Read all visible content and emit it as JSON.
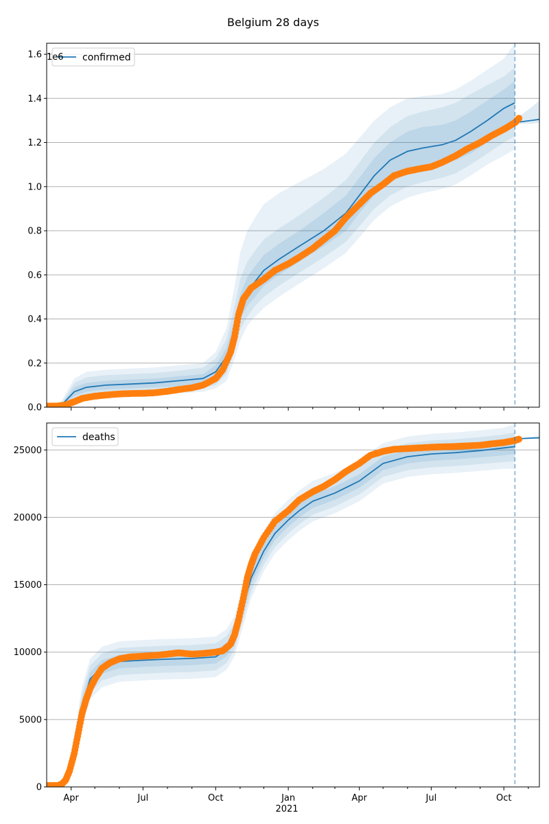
{
  "title": "Belgium 28 days",
  "x_year_label": "2021",
  "colors": {
    "model": "#1f77b4",
    "observed": "#ff7f0e",
    "band": "#1f77b4",
    "grid": "#b0b0b0"
  },
  "chart_data": [
    {
      "type": "line",
      "legend": "confirmed",
      "legend_placement": "upper-left",
      "y_offset_text": "1e6",
      "grid": "y",
      "xlim": [
        "2020-03-01",
        "2021-11-15"
      ],
      "ylim": [
        0,
        1.65
      ],
      "yticks": [
        0,
        0.2,
        0.4,
        0.6,
        0.8,
        1.0,
        1.2,
        1.4,
        1.6
      ],
      "ytick_labels": [
        "0.0",
        "0.2",
        "0.4",
        "0.6",
        "0.8",
        "1.0",
        "1.2",
        "1.4",
        "1.6"
      ],
      "forecast_start": "2021-10-15",
      "model": {
        "x": [
          "2020-03-01",
          "2020-03-20",
          "2020-04-05",
          "2020-04-20",
          "2020-05-15",
          "2020-06-15",
          "2020-07-15",
          "2020-08-15",
          "2020-09-15",
          "2020-10-01",
          "2020-10-15",
          "2020-10-25",
          "2020-11-01",
          "2020-11-10",
          "2020-11-20",
          "2020-12-01",
          "2020-12-20",
          "2021-01-15",
          "2021-02-15",
          "2021-03-15",
          "2021-04-01",
          "2021-04-20",
          "2021-05-10",
          "2021-06-01",
          "2021-06-20",
          "2021-07-15",
          "2021-08-01",
          "2021-08-20",
          "2021-09-10",
          "2021-10-01",
          "2021-10-15"
        ],
        "y": [
          0,
          0.01,
          0.07,
          0.09,
          0.1,
          0.105,
          0.11,
          0.12,
          0.13,
          0.16,
          0.23,
          0.35,
          0.45,
          0.52,
          0.57,
          0.62,
          0.67,
          0.73,
          0.8,
          0.88,
          0.96,
          1.05,
          1.12,
          1.16,
          1.175,
          1.19,
          1.21,
          1.25,
          1.3,
          1.355,
          1.38
        ],
        "lo50": [
          0,
          0.005,
          0.05,
          0.07,
          0.08,
          0.085,
          0.09,
          0.095,
          0.105,
          0.13,
          0.18,
          0.3,
          0.4,
          0.46,
          0.5,
          0.55,
          0.6,
          0.66,
          0.73,
          0.8,
          0.88,
          0.96,
          1.02,
          1.06,
          1.08,
          1.1,
          1.12,
          1.15,
          1.2,
          1.25,
          1.28
        ],
        "hi50": [
          0,
          0.015,
          0.09,
          0.11,
          0.12,
          0.125,
          0.13,
          0.14,
          0.15,
          0.19,
          0.27,
          0.4,
          0.51,
          0.59,
          0.64,
          0.69,
          0.74,
          0.8,
          0.88,
          0.96,
          1.04,
          1.13,
          1.2,
          1.25,
          1.27,
          1.28,
          1.3,
          1.34,
          1.39,
          1.44,
          1.48
        ],
        "lo80": [
          0,
          0.0,
          0.035,
          0.055,
          0.065,
          0.07,
          0.073,
          0.078,
          0.088,
          0.1,
          0.15,
          0.26,
          0.35,
          0.41,
          0.46,
          0.5,
          0.55,
          0.61,
          0.68,
          0.75,
          0.82,
          0.9,
          0.96,
          1.0,
          1.02,
          1.04,
          1.06,
          1.1,
          1.15,
          1.2,
          1.23
        ],
        "hi80": [
          0,
          0.02,
          0.11,
          0.135,
          0.145,
          0.15,
          0.155,
          0.165,
          0.18,
          0.22,
          0.31,
          0.46,
          0.58,
          0.66,
          0.71,
          0.76,
          0.81,
          0.87,
          0.95,
          1.03,
          1.11,
          1.2,
          1.27,
          1.32,
          1.34,
          1.36,
          1.38,
          1.42,
          1.46,
          1.5,
          1.54
        ],
        "lo95": [
          0,
          0.0,
          0.02,
          0.04,
          0.05,
          0.055,
          0.058,
          0.062,
          0.07,
          0.085,
          0.12,
          0.22,
          0.3,
          0.37,
          0.41,
          0.45,
          0.5,
          0.56,
          0.63,
          0.7,
          0.77,
          0.85,
          0.91,
          0.95,
          0.97,
          0.99,
          1.01,
          1.05,
          1.1,
          1.14,
          1.17
        ],
        "hi95": [
          0,
          0.03,
          0.13,
          0.16,
          0.17,
          0.175,
          0.18,
          0.19,
          0.2,
          0.25,
          0.36,
          0.55,
          0.7,
          0.8,
          0.86,
          0.92,
          0.97,
          1.02,
          1.08,
          1.15,
          1.22,
          1.3,
          1.36,
          1.4,
          1.41,
          1.42,
          1.44,
          1.48,
          1.53,
          1.58,
          1.65
        ]
      },
      "tail": {
        "x": [
          "2021-10-15",
          "2021-10-25",
          "2021-11-05",
          "2021-11-15"
        ],
        "y": [
          1.29,
          1.295,
          1.3,
          1.305
        ],
        "lo": [
          1.28,
          1.285,
          1.285,
          1.29
        ],
        "hi": [
          1.31,
          1.33,
          1.36,
          1.39
        ]
      },
      "observed": {
        "x": [
          "2020-03-01",
          "2020-03-15",
          "2020-03-25",
          "2020-04-05",
          "2020-04-15",
          "2020-05-01",
          "2020-05-15",
          "2020-06-01",
          "2020-06-15",
          "2020-07-01",
          "2020-07-15",
          "2020-08-01",
          "2020-08-15",
          "2020-09-01",
          "2020-09-15",
          "2020-10-01",
          "2020-10-10",
          "2020-10-20",
          "2020-10-25",
          "2020-10-30",
          "2020-11-05",
          "2020-11-15",
          "2020-12-01",
          "2020-12-15",
          "2021-01-01",
          "2021-01-15",
          "2021-02-01",
          "2021-02-15",
          "2021-03-01",
          "2021-03-15",
          "2021-04-01",
          "2021-04-15",
          "2021-05-01",
          "2021-05-15",
          "2021-06-01",
          "2021-06-15",
          "2021-07-01",
          "2021-07-15",
          "2021-08-01",
          "2021-08-15",
          "2021-09-01",
          "2021-09-15",
          "2021-10-01",
          "2021-10-15",
          "2021-10-20"
        ],
        "y": [
          0.005,
          0.005,
          0.01,
          0.025,
          0.04,
          0.05,
          0.055,
          0.06,
          0.062,
          0.063,
          0.065,
          0.072,
          0.08,
          0.088,
          0.1,
          0.13,
          0.17,
          0.25,
          0.32,
          0.42,
          0.49,
          0.54,
          0.58,
          0.62,
          0.65,
          0.68,
          0.72,
          0.76,
          0.8,
          0.86,
          0.92,
          0.97,
          1.01,
          1.05,
          1.07,
          1.08,
          1.09,
          1.11,
          1.14,
          1.17,
          1.2,
          1.23,
          1.26,
          1.29,
          1.31
        ]
      }
    },
    {
      "type": "line",
      "legend": "deaths",
      "legend_placement": "upper-left",
      "grid": "y",
      "xlim": [
        "2020-03-01",
        "2021-11-15"
      ],
      "ylim": [
        0,
        27000
      ],
      "yticks": [
        0,
        5000,
        10000,
        15000,
        20000,
        25000
      ],
      "ytick_labels": [
        "0",
        "5000",
        "10000",
        "15000",
        "20000",
        "25000"
      ],
      "xticks": [
        "2020-04-01",
        "2020-07-01",
        "2020-10-01",
        "2021-01-01",
        "2021-04-01",
        "2021-07-01",
        "2021-10-01"
      ],
      "xtick_labels": [
        "Apr",
        "Jul",
        "Oct",
        "Jan",
        "Apr",
        "Jul",
        "Oct"
      ],
      "forecast_start": "2021-10-15",
      "model": {
        "x": [
          "2020-03-01",
          "2020-03-15",
          "2020-03-25",
          "2020-04-05",
          "2020-04-15",
          "2020-04-25",
          "2020-05-10",
          "2020-06-01",
          "2020-07-01",
          "2020-08-01",
          "2020-09-01",
          "2020-10-01",
          "2020-10-15",
          "2020-10-25",
          "2020-11-05",
          "2020-11-15",
          "2020-12-01",
          "2020-12-15",
          "2021-01-01",
          "2021-01-15",
          "2021-02-01",
          "2021-03-01",
          "2021-04-01",
          "2021-05-01",
          "2021-06-01",
          "2021-07-01",
          "2021-08-01",
          "2021-09-01",
          "2021-10-01",
          "2021-10-15"
        ],
        "y": [
          0,
          100,
          300,
          3000,
          6000,
          8000,
          8900,
          9300,
          9400,
          9480,
          9530,
          9650,
          10200,
          11200,
          13500,
          15500,
          17500,
          18800,
          19800,
          20500,
          21200,
          21800,
          22700,
          24000,
          24500,
          24700,
          24800,
          24950,
          25150,
          25250
        ],
        "lo50": [
          0,
          80,
          250,
          2700,
          5500,
          7500,
          8400,
          8800,
          8900,
          8980,
          9020,
          9150,
          9700,
          10700,
          13000,
          15000,
          17000,
          18300,
          19300,
          20000,
          20700,
          21300,
          22200,
          23500,
          24000,
          24200,
          24300,
          24450,
          24600,
          24700
        ],
        "hi50": [
          0,
          120,
          350,
          3300,
          6500,
          8500,
          9400,
          9800,
          9900,
          9980,
          10030,
          10150,
          10700,
          11700,
          14000,
          16000,
          18000,
          19300,
          20300,
          21000,
          21700,
          22300,
          23200,
          24500,
          25000,
          25200,
          25300,
          25450,
          25650,
          25800
        ],
        "lo80": [
          0,
          60,
          200,
          2400,
          5000,
          7000,
          7900,
          8300,
          8400,
          8480,
          8520,
          8650,
          9200,
          10200,
          12500,
          14500,
          16500,
          17800,
          18800,
          19500,
          20200,
          20800,
          21700,
          23000,
          23500,
          23700,
          23800,
          23950,
          24100,
          24150
        ],
        "hi80": [
          0,
          140,
          400,
          3600,
          7000,
          9000,
          9900,
          10300,
          10400,
          10480,
          10530,
          10650,
          11200,
          12200,
          14500,
          16500,
          18500,
          19800,
          20800,
          21500,
          22200,
          22800,
          23700,
          25000,
          25500,
          25700,
          25800,
          25950,
          26150,
          26300
        ],
        "lo95": [
          0,
          40,
          150,
          2100,
          4500,
          6500,
          7400,
          7800,
          7900,
          7980,
          8020,
          8150,
          8700,
          9700,
          12000,
          14000,
          16000,
          17300,
          18300,
          19000,
          19700,
          20300,
          21200,
          22500,
          23000,
          23200,
          23300,
          23450,
          23600,
          23600
        ],
        "hi95": [
          0,
          160,
          450,
          3900,
          7500,
          9500,
          10400,
          10800,
          10900,
          10980,
          11030,
          11150,
          11700,
          12700,
          15000,
          17000,
          19000,
          20300,
          21300,
          22000,
          22700,
          23300,
          24200,
          25500,
          26000,
          26200,
          26300,
          26450,
          26650,
          26900
        ]
      },
      "tail": {
        "x": [
          "2021-10-15",
          "2021-10-25",
          "2021-11-05",
          "2021-11-15"
        ],
        "y": [
          25800,
          25850,
          25880,
          25900
        ],
        "lo": [
          25780,
          25800,
          25820,
          25840
        ],
        "hi": [
          25830,
          25900,
          25980,
          26050
        ]
      },
      "observed": {
        "x": [
          "2020-03-01",
          "2020-03-15",
          "2020-03-20",
          "2020-03-25",
          "2020-03-30",
          "2020-04-05",
          "2020-04-10",
          "2020-04-15",
          "2020-04-20",
          "2020-04-25",
          "2020-05-01",
          "2020-05-10",
          "2020-05-20",
          "2020-06-01",
          "2020-06-15",
          "2020-07-01",
          "2020-07-15",
          "2020-08-01",
          "2020-08-15",
          "2020-09-01",
          "2020-09-15",
          "2020-10-01",
          "2020-10-10",
          "2020-10-20",
          "2020-10-25",
          "2020-10-30",
          "2020-11-05",
          "2020-11-10",
          "2020-11-15",
          "2020-11-20",
          "2020-12-01",
          "2020-12-15",
          "2021-01-01",
          "2021-01-15",
          "2021-02-01",
          "2021-02-15",
          "2021-03-01",
          "2021-03-15",
          "2021-04-01",
          "2021-04-15",
          "2021-05-01",
          "2021-05-15",
          "2021-06-01",
          "2021-06-15",
          "2021-07-01",
          "2021-07-15",
          "2021-08-01",
          "2021-08-15",
          "2021-09-01",
          "2021-09-15",
          "2021-10-01",
          "2021-10-15",
          "2021-10-20"
        ],
        "y": [
          100,
          100,
          200,
          500,
          1200,
          2500,
          4000,
          5500,
          6500,
          7300,
          8000,
          8800,
          9200,
          9500,
          9650,
          9700,
          9750,
          9850,
          9950,
          9850,
          9900,
          10000,
          10100,
          10600,
          11300,
          12400,
          14000,
          15500,
          16500,
          17300,
          18500,
          19700,
          20500,
          21300,
          21900,
          22300,
          22800,
          23400,
          24000,
          24600,
          24900,
          25050,
          25100,
          25150,
          25200,
          25230,
          25260,
          25300,
          25350,
          25450,
          25550,
          25700,
          25800
        ]
      }
    }
  ]
}
